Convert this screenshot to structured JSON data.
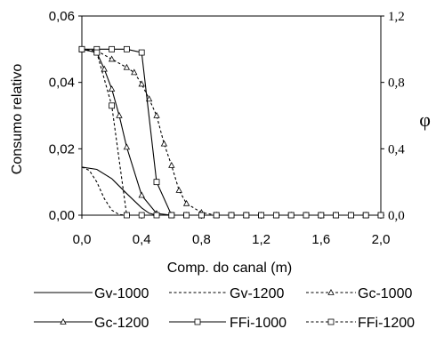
{
  "chart_data": {
    "type": "line",
    "xlabel": "Comp. do canal (m)",
    "ylabel": "Consumo relativo",
    "y2label": "φ",
    "xlim": [
      0,
      2
    ],
    "ylim": [
      0,
      0.06
    ],
    "y2lim": [
      0,
      1.2
    ],
    "xticks": [
      "0,0",
      "0,4",
      "0,8",
      "1,2",
      "1,6",
      "2,0"
    ],
    "yticks": [
      "0,00",
      "0,02",
      "0,04",
      "0,06"
    ],
    "y2ticks": [
      "0,0",
      "0,4",
      "0,8",
      "1,2"
    ],
    "grid": false,
    "legend": "bottom",
    "series": [
      {
        "name": "Gv-1000",
        "axis": "y",
        "dash": "solid",
        "marker": "none",
        "x": [
          0,
          0.1,
          0.2,
          0.3,
          0.4,
          0.45,
          0.5,
          0.6,
          2.0
        ],
        "y": [
          0.0145,
          0.0138,
          0.011,
          0.0065,
          0.0022,
          0.0006,
          0,
          0,
          0
        ]
      },
      {
        "name": "Gv-1200",
        "axis": "y",
        "dash": "dash",
        "marker": "none",
        "x": [
          0,
          0.05,
          0.1,
          0.15,
          0.2,
          0.25,
          0.3,
          0.35,
          2.0
        ],
        "y": [
          0.0145,
          0.0135,
          0.01,
          0.005,
          0.0015,
          0.0002,
          0,
          0,
          0
        ]
      },
      {
        "name": "Gc-1000",
        "axis": "y",
        "dash": "dash",
        "marker": "triangle",
        "x": [
          0,
          0.1,
          0.2,
          0.3,
          0.35,
          0.4,
          0.45,
          0.5,
          0.55,
          0.6,
          0.65,
          0.7,
          0.8,
          0.9,
          1.0,
          1.1,
          1.2,
          1.3,
          1.4,
          1.5,
          1.6,
          1.7,
          1.8,
          1.9,
          2.0
        ],
        "y": [
          0.05,
          0.0495,
          0.047,
          0.0445,
          0.043,
          0.0395,
          0.035,
          0.03,
          0.0215,
          0.015,
          0.0075,
          0.0035,
          0.0008,
          0,
          0,
          0,
          0,
          0,
          0,
          0,
          0,
          0,
          0,
          0,
          0
        ]
      },
      {
        "name": "Gc-1200",
        "axis": "y",
        "dash": "solid",
        "marker": "triangle",
        "x": [
          0,
          0.1,
          0.15,
          0.2,
          0.25,
          0.3,
          0.4,
          0.5,
          0.6,
          0.7,
          0.8,
          0.9,
          1.0,
          1.1,
          1.2,
          1.3,
          1.4,
          1.5,
          1.6,
          1.7,
          1.8,
          1.9,
          2.0
        ],
        "y": [
          0.05,
          0.049,
          0.044,
          0.038,
          0.03,
          0.0205,
          0.006,
          0.0005,
          0,
          0,
          0,
          0,
          0,
          0,
          0,
          0,
          0,
          0,
          0,
          0,
          0,
          0,
          0
        ]
      },
      {
        "name": "FFi-1000",
        "axis": "y2",
        "dash": "solid",
        "marker": "square",
        "x": [
          0,
          0.1,
          0.2,
          0.3,
          0.4,
          0.5,
          0.6,
          0.7,
          0.8,
          0.9,
          1.0,
          1.1,
          1.2,
          1.3,
          1.4,
          1.5,
          1.6,
          1.7,
          1.8,
          1.9,
          2.0
        ],
        "y": [
          1.0,
          1.0,
          1.0,
          1.0,
          0.98,
          0.2,
          0,
          0,
          0,
          0,
          0,
          0,
          0,
          0,
          0,
          0,
          0,
          0,
          0,
          0,
          0
        ]
      },
      {
        "name": "FFi-1200",
        "axis": "y2",
        "dash": "dash",
        "marker": "square",
        "x": [
          0,
          0.1,
          0.2,
          0.3,
          0.4,
          0.5,
          0.6,
          0.7,
          0.8,
          0.9,
          1.0,
          1.1,
          1.2,
          1.3,
          1.4,
          1.5,
          1.6,
          1.7,
          1.8,
          1.9,
          2.0
        ],
        "y": [
          1.0,
          0.98,
          0.66,
          0,
          0,
          0,
          0,
          0,
          0,
          0,
          0,
          0,
          0,
          0,
          0,
          0,
          0,
          0,
          0,
          0,
          0
        ]
      }
    ]
  }
}
